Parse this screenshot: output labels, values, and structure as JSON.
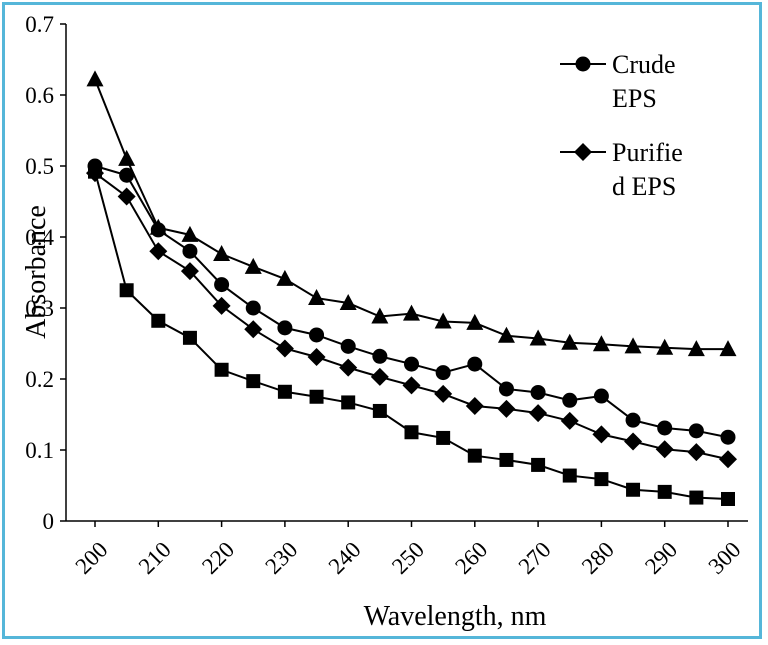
{
  "chart_data": {
    "type": "line",
    "title": "",
    "xlabel": "Wavelength, nm",
    "ylabel": "Absorbance",
    "xlim": [
      200,
      300
    ],
    "ylim": [
      0,
      0.7
    ],
    "x_ticks": [
      "200",
      "210",
      "220",
      "230",
      "240",
      "250",
      "260",
      "270",
      "280",
      "290",
      "300"
    ],
    "y_ticks": [
      "0",
      "0.1",
      "0.2",
      "0.3",
      "0.4",
      "0.5",
      "0.6",
      "0.7"
    ],
    "grid": false,
    "legend_position": "top-right",
    "x": [
      200,
      205,
      210,
      215,
      220,
      225,
      230,
      235,
      240,
      245,
      250,
      255,
      260,
      265,
      270,
      275,
      280,
      285,
      290,
      295,
      300
    ],
    "series": [
      {
        "name": "Crude EPS",
        "legend_lines": [
          "Crude",
          "EPS"
        ],
        "marker": "circle",
        "values": [
          0.5,
          0.487,
          0.41,
          0.38,
          0.333,
          0.3,
          0.272,
          0.262,
          0.246,
          0.232,
          0.221,
          0.209,
          0.221,
          0.186,
          0.181,
          0.17,
          0.176,
          0.142,
          0.131,
          0.127,
          0.118
        ]
      },
      {
        "name": "Purified EPS",
        "legend_lines": [
          "Purifie",
          "d EPS"
        ],
        "marker": "diamond",
        "values": [
          0.49,
          0.457,
          0.38,
          0.352,
          0.303,
          0.27,
          0.243,
          0.231,
          0.216,
          0.203,
          0.191,
          0.179,
          0.162,
          0.158,
          0.152,
          0.141,
          0.122,
          0.112,
          0.101,
          0.097,
          0.087
        ]
      },
      {
        "marker": "triangle",
        "values": [
          0.622,
          0.51,
          0.413,
          0.403,
          0.376,
          0.358,
          0.341,
          0.314,
          0.307,
          0.288,
          0.292,
          0.281,
          0.279,
          0.261,
          0.257,
          0.251,
          0.249,
          0.246,
          0.244,
          0.242,
          0.242
        ]
      },
      {
        "marker": "square",
        "values": [
          0.492,
          0.325,
          0.282,
          0.258,
          0.213,
          0.197,
          0.182,
          0.175,
          0.167,
          0.155,
          0.125,
          0.117,
          0.092,
          0.086,
          0.079,
          0.064,
          0.059,
          0.044,
          0.041,
          0.033,
          0.031
        ]
      }
    ]
  },
  "colors": {
    "frame": "#55b6d9",
    "ink": "#000000"
  }
}
